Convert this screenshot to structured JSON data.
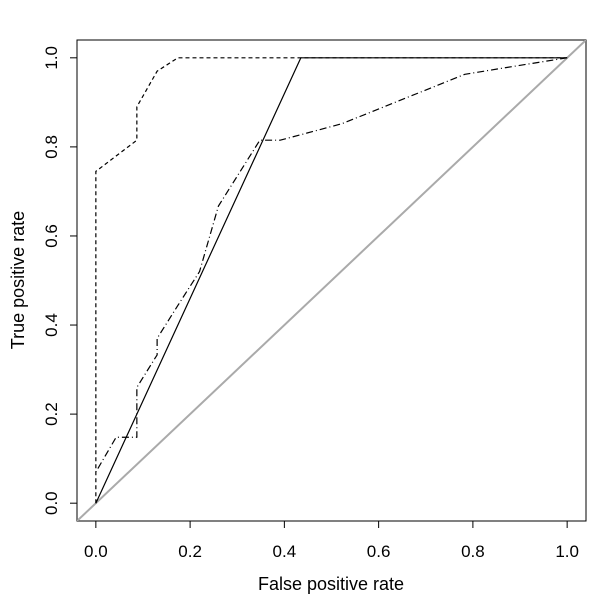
{
  "chart_data": {
    "type": "line",
    "title": "",
    "xlabel": "False positive rate",
    "ylabel": "True positive rate",
    "xlim": [
      -0.04,
      1.04
    ],
    "ylim": [
      -0.04,
      1.04
    ],
    "grid": false,
    "x_ticks": [
      "0.0",
      "0.2",
      "0.4",
      "0.6",
      "0.8",
      "1.0"
    ],
    "y_ticks": [
      "0.0",
      "0.2",
      "0.4",
      "0.6",
      "0.8",
      "1.0"
    ],
    "series": [
      {
        "style": "solid",
        "color": "#000000",
        "points": [
          [
            0.0,
            0.0
          ],
          [
            0.435,
            1.0
          ],
          [
            1.0,
            1.0
          ]
        ]
      },
      {
        "style": "dashed",
        "color": "#000000",
        "points": [
          [
            0.0,
            0.0
          ],
          [
            0.0,
            0.745
          ],
          [
            0.087,
            0.815
          ],
          [
            0.087,
            0.89
          ],
          [
            0.13,
            0.97
          ],
          [
            0.174,
            1.0
          ],
          [
            1.0,
            1.0
          ]
        ]
      },
      {
        "style": "dotdash",
        "color": "#000000",
        "points": [
          [
            0.0,
            0.07
          ],
          [
            0.043,
            0.148
          ],
          [
            0.087,
            0.148
          ],
          [
            0.087,
            0.26
          ],
          [
            0.13,
            0.333
          ],
          [
            0.13,
            0.37
          ],
          [
            0.174,
            0.444
          ],
          [
            0.22,
            0.52
          ],
          [
            0.26,
            0.667
          ],
          [
            0.348,
            0.815
          ],
          [
            0.391,
            0.815
          ],
          [
            0.522,
            0.852
          ],
          [
            0.609,
            0.889
          ],
          [
            0.696,
            0.926
          ],
          [
            0.783,
            0.963
          ],
          [
            0.87,
            0.978
          ],
          [
            1.0,
            1.0
          ]
        ]
      },
      {
        "style": "solid",
        "color": "#aaaaaa",
        "points": [
          [
            -0.04,
            -0.04
          ],
          [
            1.04,
            1.04
          ]
        ]
      }
    ]
  }
}
